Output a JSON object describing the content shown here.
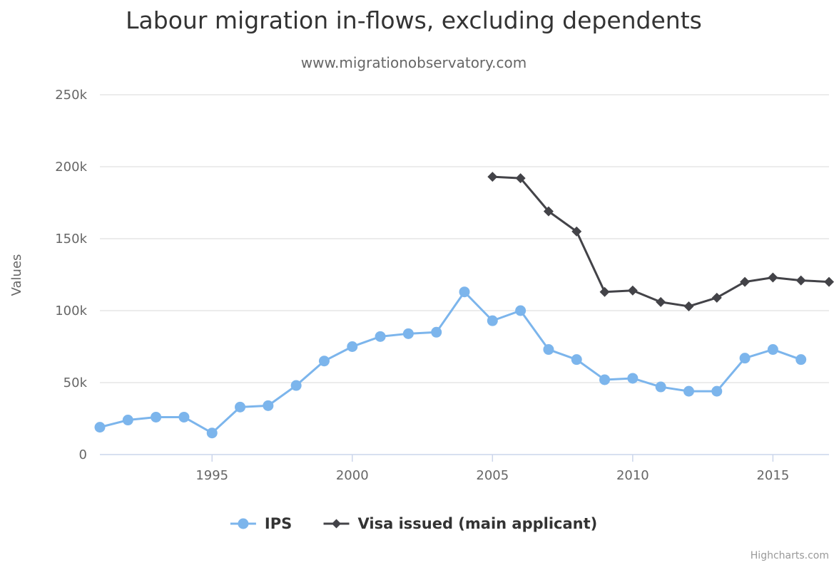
{
  "chart_data": {
    "type": "line",
    "title": "Labour migration in-flows, excluding dependents",
    "subtitle": "www.migrationobservatory.com",
    "ylabel": "Values",
    "xlabel": "",
    "xlim": [
      1991,
      2017
    ],
    "ylim": [
      0,
      250000
    ],
    "x_ticks": [
      1995,
      2000,
      2005,
      2010,
      2015
    ],
    "y_ticks": [
      0,
      50000,
      100000,
      150000,
      200000,
      250000
    ],
    "y_tick_labels": [
      "0",
      "50k",
      "100k",
      "150k",
      "200k",
      "250k"
    ],
    "grid": true,
    "legend_position": "bottom-center",
    "credits": "Highcharts.com",
    "series": [
      {
        "name": "IPS",
        "color": "#7cb5ec",
        "marker": "circle",
        "points": [
          {
            "x": 1991,
            "y": 19000
          },
          {
            "x": 1992,
            "y": 24000
          },
          {
            "x": 1993,
            "y": 26000
          },
          {
            "x": 1994,
            "y": 26000
          },
          {
            "x": 1995,
            "y": 15000
          },
          {
            "x": 1996,
            "y": 33000
          },
          {
            "x": 1997,
            "y": 34000
          },
          {
            "x": 1998,
            "y": 48000
          },
          {
            "x": 1999,
            "y": 65000
          },
          {
            "x": 2000,
            "y": 75000
          },
          {
            "x": 2001,
            "y": 82000
          },
          {
            "x": 2002,
            "y": 84000
          },
          {
            "x": 2003,
            "y": 85000
          },
          {
            "x": 2004,
            "y": 113000
          },
          {
            "x": 2005,
            "y": 93000
          },
          {
            "x": 2006,
            "y": 100000
          },
          {
            "x": 2007,
            "y": 73000
          },
          {
            "x": 2008,
            "y": 66000
          },
          {
            "x": 2009,
            "y": 52000
          },
          {
            "x": 2010,
            "y": 53000
          },
          {
            "x": 2011,
            "y": 47000
          },
          {
            "x": 2012,
            "y": 44000
          },
          {
            "x": 2013,
            "y": 44000
          },
          {
            "x": 2014,
            "y": 67000
          },
          {
            "x": 2015,
            "y": 73000
          },
          {
            "x": 2016,
            "y": 66000
          }
        ]
      },
      {
        "name": "Visa issued (main applicant)",
        "color": "#434348",
        "marker": "diamond",
        "points": [
          {
            "x": 2005,
            "y": 193000
          },
          {
            "x": 2006,
            "y": 192000
          },
          {
            "x": 2007,
            "y": 169000
          },
          {
            "x": 2008,
            "y": 155000
          },
          {
            "x": 2009,
            "y": 113000
          },
          {
            "x": 2010,
            "y": 114000
          },
          {
            "x": 2011,
            "y": 106000
          },
          {
            "x": 2012,
            "y": 103000
          },
          {
            "x": 2013,
            "y": 109000
          },
          {
            "x": 2014,
            "y": 120000
          },
          {
            "x": 2015,
            "y": 123000
          },
          {
            "x": 2016,
            "y": 121000
          },
          {
            "x": 2017,
            "y": 120000
          }
        ]
      }
    ]
  }
}
